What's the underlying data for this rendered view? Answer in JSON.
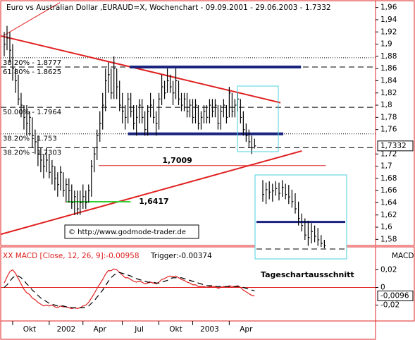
{
  "chart_data": [
    {
      "type": "ohlc",
      "title": "Euro vs Australian Dollar ,EURAUD=X, Wochenchart - 09.09.2001 - 29.06.2003 - 1.7332",
      "source": "© http://www.godmode-trader.de",
      "x": [
        0,
        1,
        2,
        3,
        4,
        5,
        6,
        7,
        8,
        9,
        10,
        11,
        12,
        13,
        14,
        15,
        16,
        17,
        18,
        19,
        20,
        21,
        22,
        23,
        24,
        25,
        26,
        27,
        28,
        29,
        30,
        31,
        32,
        33,
        34,
        35,
        36,
        37,
        38,
        39,
        40,
        41,
        42,
        43,
        44,
        45,
        46,
        47,
        48,
        49,
        50,
        51,
        52,
        53,
        54,
        55,
        56,
        57,
        58,
        59,
        60,
        61,
        62,
        63,
        64,
        65,
        66,
        67,
        68,
        69,
        70,
        71,
        72,
        73,
        74,
        75,
        76,
        77,
        78,
        79,
        80,
        81,
        82,
        83,
        84,
        85,
        86,
        87,
        88,
        89
      ],
      "high": [
        1.92,
        1.93,
        1.92,
        1.9,
        1.86,
        1.85,
        1.82,
        1.8,
        1.8,
        1.79,
        1.78,
        1.76,
        1.75,
        1.73,
        1.72,
        1.73,
        1.72,
        1.71,
        1.7,
        1.69,
        1.7,
        1.69,
        1.68,
        1.68,
        1.67,
        1.66,
        1.66,
        1.66,
        1.67,
        1.66,
        1.67,
        1.71,
        1.73,
        1.76,
        1.79,
        1.82,
        1.86,
        1.87,
        1.86,
        1.88,
        1.86,
        1.84,
        1.82,
        1.8,
        1.82,
        1.82,
        1.8,
        1.8,
        1.81,
        1.81,
        1.79,
        1.8,
        1.82,
        1.81,
        1.79,
        1.82,
        1.85,
        1.84,
        1.86,
        1.85,
        1.84,
        1.86,
        1.84,
        1.82,
        1.82,
        1.82,
        1.81,
        1.81,
        1.81,
        1.8,
        1.79,
        1.8,
        1.8,
        1.81,
        1.81,
        1.81,
        1.8,
        1.8,
        1.81,
        1.8,
        1.83,
        1.82,
        1.81,
        1.82,
        1.81,
        1.79,
        1.77,
        1.76,
        1.75,
        1.745
      ],
      "low": [
        1.88,
        1.89,
        1.87,
        1.84,
        1.82,
        1.8,
        1.78,
        1.76,
        1.75,
        1.75,
        1.73,
        1.72,
        1.7,
        1.69,
        1.68,
        1.69,
        1.68,
        1.67,
        1.66,
        1.65,
        1.66,
        1.65,
        1.64,
        1.64,
        1.63,
        1.62,
        1.62,
        1.62,
        1.63,
        1.63,
        1.64,
        1.65,
        1.69,
        1.71,
        1.74,
        1.76,
        1.79,
        1.82,
        1.81,
        1.81,
        1.81,
        1.79,
        1.77,
        1.76,
        1.77,
        1.78,
        1.76,
        1.75,
        1.77,
        1.77,
        1.75,
        1.75,
        1.78,
        1.77,
        1.75,
        1.76,
        1.8,
        1.81,
        1.82,
        1.82,
        1.8,
        1.81,
        1.8,
        1.79,
        1.79,
        1.78,
        1.78,
        1.77,
        1.77,
        1.76,
        1.76,
        1.77,
        1.77,
        1.77,
        1.78,
        1.78,
        1.76,
        1.76,
        1.78,
        1.77,
        1.78,
        1.78,
        1.78,
        1.79,
        1.77,
        1.75,
        1.74,
        1.73,
        1.72,
        1.729
      ],
      "close": [
        1.9,
        1.91,
        1.89,
        1.86,
        1.84,
        1.81,
        1.8,
        1.78,
        1.77,
        1.78,
        1.75,
        1.74,
        1.72,
        1.71,
        1.7,
        1.71,
        1.69,
        1.7,
        1.68,
        1.67,
        1.69,
        1.66,
        1.67,
        1.66,
        1.64,
        1.65,
        1.63,
        1.64,
        1.65,
        1.64,
        1.66,
        1.7,
        1.72,
        1.75,
        1.77,
        1.8,
        1.84,
        1.85,
        1.82,
        1.86,
        1.83,
        1.8,
        1.79,
        1.78,
        1.81,
        1.79,
        1.77,
        1.78,
        1.8,
        1.78,
        1.76,
        1.79,
        1.8,
        1.78,
        1.77,
        1.81,
        1.83,
        1.82,
        1.84,
        1.83,
        1.82,
        1.84,
        1.81,
        1.8,
        1.81,
        1.79,
        1.8,
        1.78,
        1.8,
        1.77,
        1.78,
        1.79,
        1.78,
        1.8,
        1.79,
        1.8,
        1.77,
        1.79,
        1.8,
        1.78,
        1.82,
        1.79,
        1.8,
        1.81,
        1.78,
        1.76,
        1.75,
        1.74,
        1.73,
        1.7332
      ],
      "color": "#000000",
      "xlim": [
        -1,
        132
      ],
      "ylim": [
        1.57,
        1.97
      ],
      "xticks": [
        {
          "value": 9,
          "label": "Okt"
        },
        22,
        34,
        48,
        61,
        73,
        86
      ],
      "xtick_labels": [
        "Okt",
        "2002",
        "Apr",
        "Jul",
        "Okt",
        "2003",
        "Apr"
      ],
      "yticks": [
        {
          "value": 1.96,
          "label": "1,96"
        },
        {
          "value": 1.94,
          "label": "1,94"
        },
        {
          "value": 1.92,
          "label": "1,92"
        },
        {
          "value": 1.9,
          "label": "1,9"
        },
        {
          "value": 1.88,
          "label": "1,88"
        },
        {
          "value": 1.86,
          "label": "1,86"
        },
        {
          "value": 1.84,
          "label": "1,84"
        },
        {
          "value": 1.82,
          "label": "1,82"
        },
        {
          "value": 1.8,
          "label": "1,8"
        },
        {
          "value": 1.78,
          "label": "1,78"
        },
        {
          "value": 1.76,
          "label": "1,76"
        },
        {
          "value": 1.72,
          "label": "1,72"
        },
        {
          "value": 1.7,
          "label": "1,7"
        },
        {
          "value": 1.68,
          "label": "1,68"
        },
        {
          "value": 1.66,
          "label": "1,66"
        },
        {
          "value": 1.64,
          "label": "1,64"
        },
        {
          "value": 1.62,
          "label": "1,62"
        },
        {
          "value": 1.6,
          "label": "1,6"
        },
        {
          "value": 1.58,
          "label": "1,58"
        }
      ],
      "last": {
        "value": 1.7332,
        "label": "1,7332"
      },
      "fib_levels": [
        {
          "value": 1.8777,
          "label": "38.20% - 1.8777",
          "dash": "dotted"
        },
        {
          "value": 1.8625,
          "label": "61.80% - 1.8625",
          "dash": "dashed"
        },
        {
          "value": 1.7964,
          "label": "50.00% - 1.7964",
          "dash": "dashed"
        },
        {
          "value": 1.753,
          "label": "38.20% - 1.753",
          "dash": "dotted"
        },
        {
          "value": 1.7303,
          "label": "38.20% - 1.7303",
          "dash": "dashed"
        }
      ],
      "levels": [
        {
          "value": 1.8625,
          "from": 44.6,
          "to": 105.5,
          "color": "#1a237e",
          "width": 4
        },
        {
          "value": 1.753,
          "from": 44,
          "to": 99.2,
          "color": "#1a237e",
          "width": 4
        },
        {
          "value": 1.7009,
          "from": 33.6,
          "to": 114.3,
          "color": "#e02020",
          "width": 1,
          "label": "1,7009"
        },
        {
          "value": 1.6417,
          "from": 22.3,
          "to": 44.9,
          "color": "#33cc33",
          "width": 2,
          "label": "1,6417"
        }
      ],
      "trendlines": [
        {
          "x": [
            -1.5,
            98.2
          ],
          "y": [
            1.9138,
            1.804
          ],
          "color": "#e02020",
          "width": 2
        },
        {
          "x": [
            -1.5,
            105.8
          ],
          "y": [
            1.588,
            1.725
          ],
          "color": "#e02020",
          "width": 2
        },
        {
          "x": [
            -0.25,
            19.8
          ],
          "y": [
            1.914,
            1.968
          ],
          "color": "#e02020",
          "width": 1
        }
      ]
    },
    {
      "type": "line",
      "title": "XX MACD [Close, 12, 26, 9]:-0.00958",
      "trigger_label": "Trigger:-0.00374",
      "axis_label": "MACD",
      "series": [
        {
          "color": "#e02020",
          "values": [
            0.005,
            0.012,
            0.018,
            0.02,
            0.016,
            0.01,
            0.004,
            -0.002,
            -0.006,
            -0.008,
            -0.012,
            -0.014,
            -0.017,
            -0.019,
            -0.021,
            -0.02,
            -0.021,
            -0.02,
            -0.022,
            -0.023,
            -0.021,
            -0.022,
            -0.022,
            -0.023,
            -0.024,
            -0.023,
            -0.024,
            -0.023,
            -0.021,
            -0.02,
            -0.017,
            -0.012,
            -0.007,
            -0.001,
            0.004,
            0.009,
            0.015,
            0.019,
            0.019,
            0.021,
            0.02,
            0.017,
            0.014,
            0.011,
            0.011,
            0.009,
            0.007,
            0.006,
            0.007,
            0.006,
            0.004,
            0.005,
            0.006,
            0.005,
            0.004,
            0.006,
            0.009,
            0.01,
            0.012,
            0.013,
            0.012,
            0.013,
            0.011,
            0.009,
            0.008,
            0.006,
            0.005,
            0.003,
            0.003,
            0.001,
            0.001,
            0.001,
            0,
            0.001,
            0.001,
            0.001,
            -0.001,
            0,
            0.001,
            0,
            0.002,
            0.001,
            0.001,
            0.002,
            0,
            -0.003,
            -0.005,
            -0.007,
            -0.009,
            -0.00958
          ]
        },
        {
          "color": "#000000",
          "dash": "dashed",
          "values": [
            0,
            0.003,
            0.007,
            0.011,
            0.013,
            0.013,
            0.011,
            0.008,
            0.004,
            0.001,
            -0.003,
            -0.006,
            -0.009,
            -0.012,
            -0.014,
            -0.016,
            -0.018,
            -0.019,
            -0.02,
            -0.021,
            -0.021,
            -0.021,
            -0.022,
            -0.022,
            -0.023,
            -0.023,
            -0.023,
            -0.023,
            -0.023,
            -0.022,
            -0.021,
            -0.018,
            -0.015,
            -0.011,
            -0.007,
            -0.003,
            0.002,
            0.007,
            0.011,
            0.014,
            0.016,
            0.017,
            0.016,
            0.015,
            0.014,
            0.013,
            0.011,
            0.01,
            0.009,
            0.008,
            0.007,
            0.006,
            0.006,
            0.006,
            0.005,
            0.005,
            0.006,
            0.007,
            0.008,
            0.01,
            0.011,
            0.011,
            0.011,
            0.011,
            0.01,
            0.009,
            0.008,
            0.007,
            0.006,
            0.005,
            0.004,
            0.003,
            0.002,
            0.002,
            0.002,
            0.001,
            0.001,
            0.001,
            0.001,
            0.001,
            0.001,
            0.001,
            0.001,
            0.001,
            0.001,
            0,
            -0.001,
            -0.002,
            -0.003,
            -0.00374
          ]
        }
      ],
      "ylim": [
        -0.038,
        0.046
      ],
      "yticks": [
        {
          "value": 0.02,
          "label": "0,02"
        },
        0,
        {
          "value": -0.02,
          "label": "-0,02"
        }
      ],
      "last": {
        "value": -0.0096,
        "label": "-0,0096"
      },
      "zero_line": "#e02020"
    },
    {
      "type": "ohlc",
      "title": "Tageschartausschnitt",
      "high": [
        1.788,
        1.786,
        1.787,
        1.785,
        1.787,
        1.786,
        1.788,
        1.785,
        1.784,
        1.78,
        1.777,
        1.77,
        1.76,
        1.756,
        1.754,
        1.752,
        1.75,
        1.748,
        1.742,
        1.738
      ],
      "low": [
        1.77,
        1.768,
        1.772,
        1.77,
        1.775,
        1.771,
        1.774,
        1.772,
        1.768,
        1.765,
        1.76,
        1.75,
        1.745,
        1.738,
        1.733,
        1.735,
        1.736,
        1.733,
        1.732,
        1.731
      ],
      "close": [
        1.776,
        1.78,
        1.778,
        1.779,
        1.781,
        1.777,
        1.782,
        1.776,
        1.774,
        1.77,
        1.764,
        1.756,
        1.75,
        1.742,
        1.74,
        1.745,
        1.741,
        1.738,
        1.735,
        1.733
      ],
      "color": "#000000",
      "ylim": [
        1.725,
        1.79
      ],
      "levels": [
        {
          "value": 1.753,
          "color": "#1a237e",
          "width": 3
        },
        {
          "value": 1.7303,
          "color": "#000000",
          "width": 1,
          "dash": "dashed"
        }
      ]
    }
  ]
}
